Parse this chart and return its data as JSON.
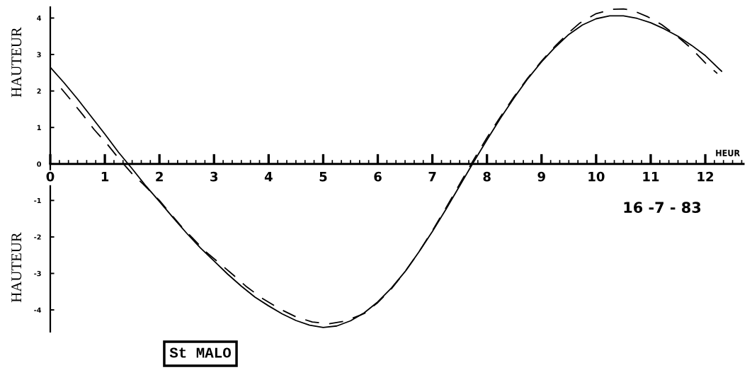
{
  "chart_data": {
    "type": "line",
    "xlabel": "HEUR",
    "ylabel": "HAUTEUR",
    "annotations": [
      "16 -7 - 83",
      "St MALO"
    ],
    "xlim": [
      0,
      12.7
    ],
    "ylim": [
      -4.6,
      4.3
    ],
    "xticks": [
      0,
      {
        "value": 0.167,
        "label": null
      },
      {
        "value": 0.333,
        "label": null
      },
      {
        "value": 0.5,
        "label": null
      },
      {
        "value": 0.667,
        "label": null
      },
      {
        "value": 0.833,
        "label": null
      },
      1,
      {
        "value": 1.167,
        "label": null
      },
      {
        "value": 1.333,
        "label": null
      },
      {
        "value": 1.5,
        "label": null
      },
      {
        "value": 1.667,
        "label": null
      },
      {
        "value": 1.833,
        "label": null
      },
      2,
      {
        "value": 2.167,
        "label": null
      },
      {
        "value": 2.333,
        "label": null
      },
      {
        "value": 2.5,
        "label": null
      },
      {
        "value": 2.667,
        "label": null
      },
      {
        "value": 2.833,
        "label": null
      },
      3,
      {
        "value": 3.167,
        "label": null
      },
      {
        "value": 3.333,
        "label": null
      },
      {
        "value": 3.5,
        "label": null
      },
      {
        "value": 3.667,
        "label": null
      },
      {
        "value": 3.833,
        "label": null
      },
      4,
      {
        "value": 4.167,
        "label": null
      },
      {
        "value": 4.333,
        "label": null
      },
      {
        "value": 4.5,
        "label": null
      },
      {
        "value": 4.667,
        "label": null
      },
      {
        "value": 4.833,
        "label": null
      },
      5,
      {
        "value": 5.167,
        "label": null
      },
      {
        "value": 5.333,
        "label": null
      },
      {
        "value": 5.5,
        "label": null
      },
      {
        "value": 5.667,
        "label": null
      },
      {
        "value": 5.833,
        "label": null
      },
      6,
      {
        "value": 6.167,
        "label": null
      },
      {
        "value": 6.333,
        "label": null
      },
      {
        "value": 6.5,
        "label": null
      },
      {
        "value": 6.667,
        "label": null
      },
      {
        "value": 6.833,
        "label": null
      },
      7,
      {
        "value": 7.167,
        "label": null
      },
      {
        "value": 7.333,
        "label": null
      },
      {
        "value": 7.5,
        "label": null
      },
      {
        "value": 7.667,
        "label": null
      },
      {
        "value": 7.833,
        "label": null
      },
      8,
      {
        "value": 8.167,
        "label": null
      },
      {
        "value": 8.333,
        "label": null
      },
      {
        "value": 8.5,
        "label": null
      },
      {
        "value": 8.667,
        "label": null
      },
      {
        "value": 8.833,
        "label": null
      },
      9,
      {
        "value": 9.167,
        "label": null
      },
      {
        "value": 9.333,
        "label": null
      },
      {
        "value": 9.5,
        "label": null
      },
      {
        "value": 9.667,
        "label": null
      },
      {
        "value": 9.833,
        "label": null
      },
      10,
      {
        "value": 10.167,
        "label": null
      },
      {
        "value": 10.333,
        "label": null
      },
      {
        "value": 10.5,
        "label": null
      },
      {
        "value": 10.667,
        "label": null
      },
      {
        "value": 10.833,
        "label": null
      },
      11,
      {
        "value": 11.167,
        "label": null
      },
      {
        "value": 11.333,
        "label": null
      },
      {
        "value": 11.5,
        "label": null
      },
      {
        "value": 11.667,
        "label": null
      },
      {
        "value": 11.833,
        "label": null
      },
      12,
      {
        "value": 12.167,
        "label": null
      },
      {
        "value": 12.333,
        "label": null
      },
      {
        "value": 12.5,
        "label": null
      },
      {
        "value": 12.667,
        "label": null
      }
    ],
    "yticks": [
      -4,
      -3,
      -2,
      -1,
      0,
      1,
      2,
      3,
      4
    ],
    "series": [
      {
        "color": "#000000",
        "line_style": "solid",
        "x": [
          0,
          0.25,
          0.5,
          0.75,
          1,
          1.25,
          1.5,
          1.75,
          2,
          2.25,
          2.5,
          2.75,
          3,
          3.25,
          3.5,
          3.75,
          4,
          4.25,
          4.5,
          4.75,
          5,
          5.25,
          5.5,
          5.75,
          6,
          6.25,
          6.5,
          6.75,
          7,
          7.25,
          7.5,
          7.75,
          8,
          8.25,
          8.5,
          8.75,
          9,
          9.25,
          9.5,
          9.75,
          10,
          10.25,
          10.5,
          10.75,
          11,
          11.25,
          11.5,
          11.75,
          12,
          12.3
        ],
        "values": [
          2.65,
          2.23,
          1.78,
          1.3,
          0.82,
          0.32,
          -0.13,
          -0.6,
          -1.03,
          -1.47,
          -1.9,
          -2.3,
          -2.66,
          -3.02,
          -3.35,
          -3.65,
          -3.89,
          -4.11,
          -4.29,
          -4.42,
          -4.48,
          -4.44,
          -4.3,
          -4.08,
          -3.78,
          -3.4,
          -2.95,
          -2.42,
          -1.85,
          -1.24,
          -0.6,
          0.04,
          0.66,
          1.26,
          1.82,
          2.34,
          2.8,
          3.2,
          3.55,
          3.81,
          3.98,
          4.06,
          4.06,
          3.99,
          3.87,
          3.7,
          3.5,
          3.25,
          2.97,
          2.54
        ]
      },
      {
        "color": "#000000",
        "line_style": "dashed",
        "x": [
          0.2,
          0.4,
          0.6,
          0.8,
          1.05,
          1.25,
          1.5,
          1.7,
          2,
          2.4,
          2.6,
          2.85,
          3.1,
          3.35,
          3.6,
          3.9,
          4.2,
          4.5,
          4.8,
          5.1,
          5.4,
          5.75,
          6,
          6.25,
          6.5,
          6.75,
          7,
          7.25,
          7.5,
          7.75,
          8,
          8.25,
          8.5,
          8.75,
          9,
          9.25,
          9.5,
          9.7,
          10,
          10.3,
          10.5,
          10.65,
          10.95,
          11.2,
          11.5,
          11.75,
          12,
          12.22
        ],
        "values": [
          2.07,
          1.71,
          1.34,
          0.95,
          0.53,
          0.16,
          -0.27,
          -0.55,
          -1.0,
          -1.71,
          -2.02,
          -2.41,
          -2.72,
          -3.04,
          -3.37,
          -3.7,
          -3.97,
          -4.19,
          -4.33,
          -4.38,
          -4.31,
          -4.1,
          -3.8,
          -3.42,
          -2.95,
          -2.42,
          -1.83,
          -1.2,
          -0.55,
          0.1,
          0.72,
          1.3,
          1.85,
          2.36,
          2.82,
          3.23,
          3.6,
          3.86,
          4.12,
          4.24,
          4.25,
          4.22,
          4.03,
          3.82,
          3.48,
          3.16,
          2.77,
          2.48
        ]
      }
    ]
  }
}
